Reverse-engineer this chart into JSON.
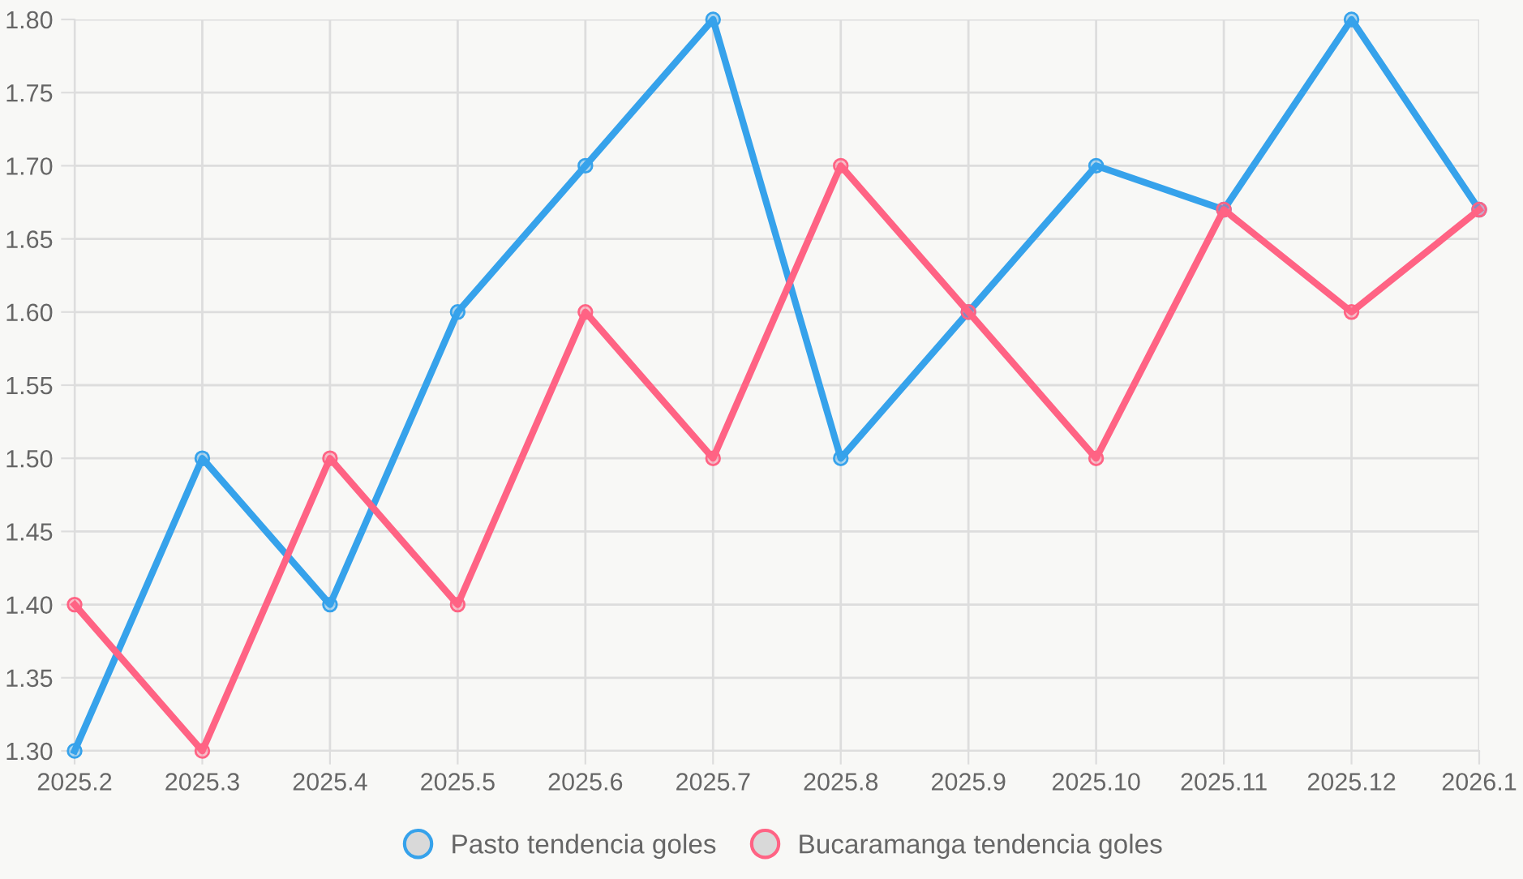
{
  "chart_data": {
    "type": "line",
    "categories": [
      "2025.2",
      "2025.3",
      "2025.4",
      "2025.5",
      "2025.6",
      "2025.7",
      "2025.8",
      "2025.9",
      "2025.10",
      "2025.11",
      "2025.12",
      "2026.1"
    ],
    "series": [
      {
        "name": "Pasto tendencia goles",
        "color": "#36a2eb",
        "values": [
          1.3,
          1.5,
          1.4,
          1.6,
          1.7,
          1.8,
          1.5,
          1.6,
          1.7,
          1.67,
          1.8,
          1.67
        ]
      },
      {
        "name": "Bucaramanga tendencia goles",
        "color": "#ff6384",
        "values": [
          1.4,
          1.3,
          1.5,
          1.4,
          1.6,
          1.5,
          1.7,
          1.6,
          1.5,
          1.67,
          1.6,
          1.67
        ]
      }
    ],
    "ylim": [
      1.3,
      1.8
    ],
    "yticks": [
      {
        "value": 1.3,
        "label": "1.30"
      },
      {
        "value": 1.35,
        "label": "1.35"
      },
      {
        "value": 1.4,
        "label": "1.40"
      },
      {
        "value": 1.45,
        "label": "1.45"
      },
      {
        "value": 1.5,
        "label": "1.50"
      },
      {
        "value": 1.55,
        "label": "1.55"
      },
      {
        "value": 1.6,
        "label": "1.60"
      },
      {
        "value": 1.65,
        "label": "1.65"
      },
      {
        "value": 1.7,
        "label": "1.70"
      },
      {
        "value": 1.75,
        "label": "1.75"
      },
      {
        "value": 1.8,
        "label": "1.80"
      }
    ],
    "grid": true,
    "legend": "bottom",
    "marker": "circle",
    "line_style": "solid"
  }
}
